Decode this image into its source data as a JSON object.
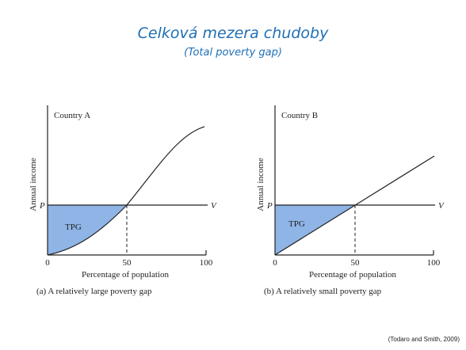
{
  "header": {
    "title": "Celková mezera chudoby",
    "subtitle": "(Total poverty gap)"
  },
  "panels": [
    {
      "country": "Country A",
      "y_axis_label": "Annual income",
      "x_axis_label": "Percentage of population",
      "line_left": "P",
      "line_right": "V",
      "area_label": "TPG",
      "x_tick_labels": [
        "0",
        "50",
        "100"
      ],
      "caption": "(a) A relatively large poverty gap"
    },
    {
      "country": "Country B",
      "y_axis_label": "Annual income",
      "x_axis_label": "Percentage of population",
      "line_left": "P",
      "line_right": "V",
      "area_label": "TPG",
      "x_tick_labels": [
        "0",
        "50",
        "100"
      ],
      "caption": "(b) A relatively small poverty gap"
    }
  ],
  "source": "(Todaro and Smith, 2009)"
}
